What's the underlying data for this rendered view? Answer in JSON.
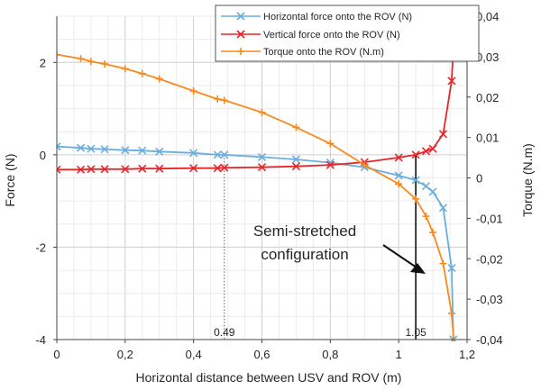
{
  "chart_data": {
    "type": "line",
    "xlabel": "Horizontal distance between USV and ROV (m)",
    "ylabel": "Force (N)",
    "y2label": "Torque (N.m)",
    "xlim": [
      0,
      1.2
    ],
    "ylim": [
      -4,
      3
    ],
    "y2lim": [
      -0.04,
      0.04
    ],
    "x_ticks": [
      "0",
      "0,2",
      "0,4",
      "0,6",
      "0,8",
      "1",
      "1,2"
    ],
    "y_ticks": [
      "-4",
      "-2",
      "0",
      "2"
    ],
    "y2_ticks": [
      "-0,04",
      "-0,03",
      "-0,02",
      "-0,01",
      "0",
      "0,01",
      "0,02",
      "0,03",
      "0,04"
    ],
    "grid": true,
    "legend_position": "top-right",
    "series": [
      {
        "name": "Horizontal force onto the ROV (N)",
        "color": "#6aaede",
        "marker": "x",
        "axis": "left",
        "x": [
          0,
          0.07,
          0.1,
          0.14,
          0.2,
          0.25,
          0.3,
          0.4,
          0.47,
          0.49,
          0.6,
          0.7,
          0.8,
          0.9,
          1.0,
          1.05,
          1.08,
          1.1,
          1.13,
          1.155,
          1.16
        ],
        "y": [
          0.18,
          0.15,
          0.13,
          0.12,
          0.1,
          0.09,
          0.07,
          0.04,
          0.0,
          0.0,
          -0.05,
          -0.1,
          -0.17,
          -0.27,
          -0.45,
          -0.55,
          -0.68,
          -0.8,
          -1.15,
          -2.45,
          -4.0
        ]
      },
      {
        "name": "Vertical force onto the ROV (N)",
        "color": "#e8262a",
        "marker": "x",
        "axis": "left",
        "x": [
          0,
          0.07,
          0.1,
          0.14,
          0.2,
          0.25,
          0.3,
          0.4,
          0.47,
          0.49,
          0.6,
          0.7,
          0.8,
          0.9,
          1.0,
          1.05,
          1.08,
          1.1,
          1.13,
          1.155,
          1.165
        ],
        "y": [
          -0.32,
          -0.32,
          -0.31,
          -0.31,
          -0.31,
          -0.3,
          -0.3,
          -0.29,
          -0.29,
          -0.28,
          -0.27,
          -0.25,
          -0.22,
          -0.16,
          -0.06,
          0.0,
          0.08,
          0.13,
          0.45,
          1.6,
          3.0
        ]
      },
      {
        "name": "Torque onto the ROV (N.m)",
        "color": "#f7891f",
        "marker": "+",
        "axis": "right",
        "x": [
          0,
          0.07,
          0.1,
          0.14,
          0.2,
          0.25,
          0.3,
          0.4,
          0.47,
          0.49,
          0.6,
          0.7,
          0.8,
          0.9,
          1.0,
          1.05,
          1.08,
          1.1,
          1.13,
          1.155,
          1.165
        ],
        "y": [
          0.0305,
          0.0295,
          0.0288,
          0.0282,
          0.027,
          0.0258,
          0.0245,
          0.0215,
          0.0195,
          0.0192,
          0.0162,
          0.0125,
          0.0085,
          0.0032,
          -0.0015,
          -0.0052,
          -0.0095,
          -0.0135,
          -0.0212,
          -0.0335,
          -0.0445
        ]
      }
    ],
    "annotations": {
      "label_lines": [
        "Semi-stretched",
        "configuration"
      ],
      "marker_049": "0.49",
      "marker_105": "1.05"
    }
  }
}
